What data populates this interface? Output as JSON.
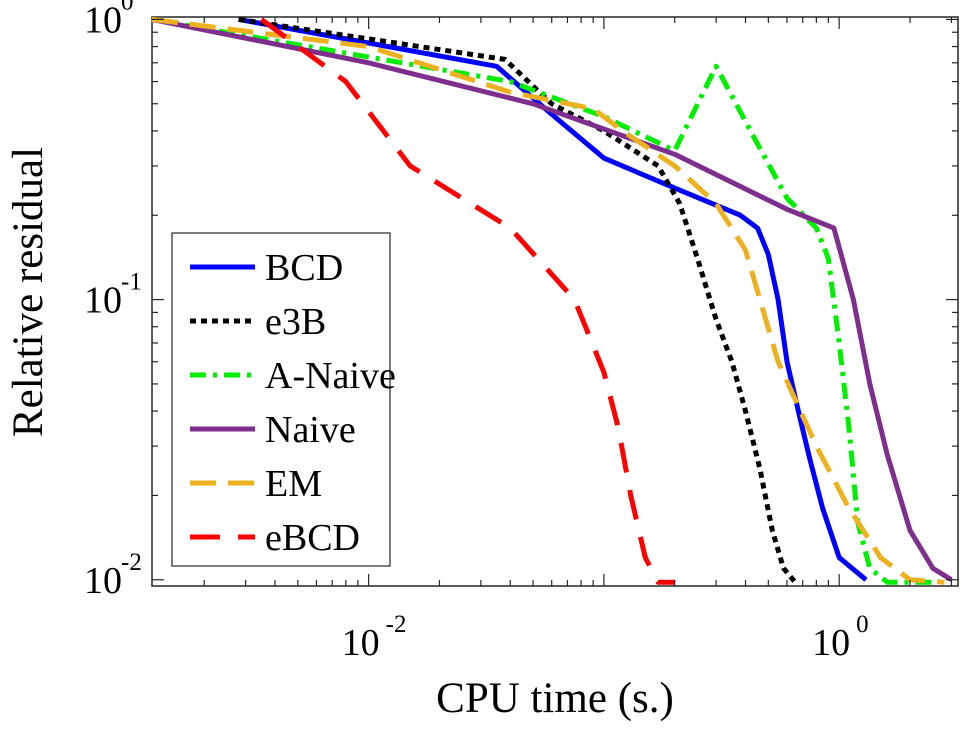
{
  "chart_data": {
    "type": "line",
    "title": "",
    "xlabel": "CPU time (s.)",
    "ylabel": "Relative residual",
    "xscale": "log",
    "yscale": "log",
    "xlim": [
      0.0012,
      3.2
    ],
    "ylim": [
      0.0095,
      1.02
    ],
    "xticks": [
      {
        "value": 0.01,
        "base": "10",
        "exp": "-2"
      },
      {
        "value": 1,
        "base": "10",
        "exp": "0"
      }
    ],
    "yticks": [
      {
        "value": 0.01,
        "base": "10",
        "exp": "-2"
      },
      {
        "value": 0.1,
        "base": "10",
        "exp": "-1"
      },
      {
        "value": 1,
        "base": "10",
        "exp": "0"
      }
    ],
    "grid": false,
    "legend_position": "lower-left",
    "series": [
      {
        "name": "BCD",
        "color": "#0000ff",
        "dash": "solid",
        "x": [
          0.0028,
          0.035,
          0.058,
          0.1,
          0.2,
          0.38,
          0.45,
          0.5,
          0.55,
          0.6,
          0.68,
          0.75,
          0.85,
          1.0,
          1.3
        ],
        "y": [
          1.0,
          0.68,
          0.47,
          0.32,
          0.25,
          0.2,
          0.18,
          0.145,
          0.1,
          0.06,
          0.038,
          0.027,
          0.018,
          0.012,
          0.01
        ]
      },
      {
        "name": "e3B",
        "color": "#000000",
        "dash": "dotted",
        "x": [
          0.0028,
          0.038,
          0.06,
          0.1,
          0.17,
          0.21,
          0.25,
          0.3,
          0.35,
          0.4,
          0.46,
          0.52,
          0.58,
          0.65
        ],
        "y": [
          1.0,
          0.72,
          0.5,
          0.4,
          0.3,
          0.22,
          0.14,
          0.085,
          0.06,
          0.04,
          0.025,
          0.015,
          0.011,
          0.0098
        ]
      },
      {
        "name": "A-Naive",
        "color": "#00ee00",
        "dash": "dashdot",
        "x": [
          0.0012,
          0.04,
          0.1,
          0.2,
          0.3,
          0.42,
          0.6,
          0.8,
          0.9,
          1.0,
          1.1,
          1.2,
          1.35,
          1.6,
          2.5
        ],
        "y": [
          1.0,
          0.6,
          0.45,
          0.34,
          0.68,
          0.4,
          0.23,
          0.18,
          0.14,
          0.07,
          0.035,
          0.016,
          0.011,
          0.0098,
          0.0098
        ]
      },
      {
        "name": "Naive",
        "color": "#7e2f8e",
        "dash": "solid",
        "x": [
          0.0012,
          0.01,
          0.05,
          0.2,
          0.6,
          0.95,
          1.15,
          1.35,
          1.6,
          2.0,
          2.5,
          3.0
        ],
        "y": [
          1.0,
          0.7,
          0.5,
          0.33,
          0.21,
          0.18,
          0.1,
          0.05,
          0.028,
          0.015,
          0.011,
          0.01
        ]
      },
      {
        "name": "EM",
        "color": "#edb120",
        "dash": "dashed",
        "x": [
          0.0012,
          0.01,
          0.04,
          0.09,
          0.12,
          0.2,
          0.3,
          0.4,
          0.55,
          0.8,
          1.1,
          1.5,
          2.0,
          2.8
        ],
        "y": [
          1.0,
          0.8,
          0.55,
          0.48,
          0.4,
          0.3,
          0.22,
          0.15,
          0.06,
          0.03,
          0.018,
          0.012,
          0.01,
          0.0098
        ]
      },
      {
        "name": "eBCD",
        "color": "#ff0000",
        "dash": "longdash",
        "x": [
          0.0035,
          0.008,
          0.015,
          0.04,
          0.075,
          0.1,
          0.115,
          0.13,
          0.15,
          0.17,
          0.2
        ],
        "y": [
          1.0,
          0.6,
          0.3,
          0.18,
          0.1,
          0.055,
          0.035,
          0.02,
          0.012,
          0.0098,
          0.0098
        ]
      }
    ]
  }
}
